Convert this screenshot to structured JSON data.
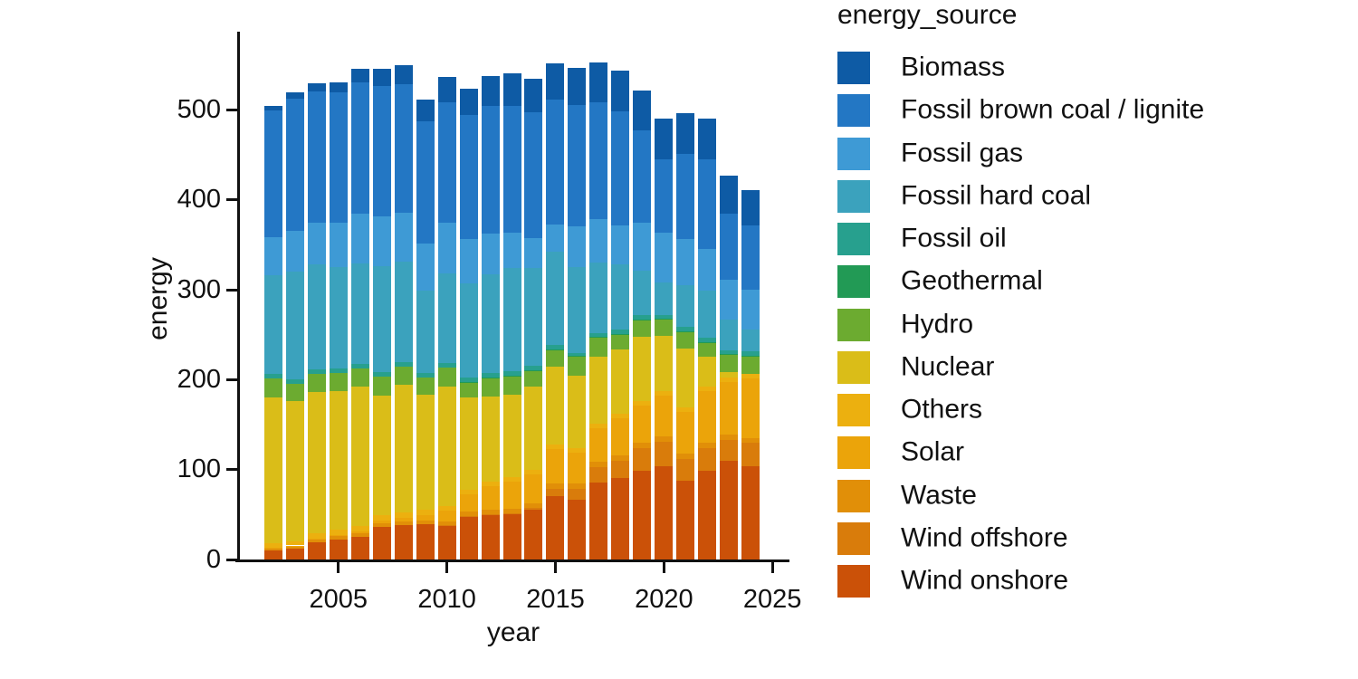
{
  "figure": {
    "background": "#ffffff",
    "axis_color": "#111111",
    "y_axis": {
      "label": "energy",
      "ticks": [
        0,
        100,
        200,
        300,
        400,
        500
      ]
    },
    "x_axis": {
      "label": "year",
      "ticks": [
        2005,
        2010,
        2015,
        2020,
        2025
      ]
    },
    "legend": {
      "title": "energy_source"
    }
  },
  "chart_data": {
    "type": "bar",
    "stacked": true,
    "title": "",
    "xlabel": "year",
    "ylabel": "energy",
    "legend_title": "energy_source",
    "legend_position": "right",
    "grid": false,
    "ylim": [
      0,
      560
    ],
    "x": [
      2002,
      2003,
      2004,
      2005,
      2006,
      2007,
      2008,
      2009,
      2010,
      2011,
      2012,
      2013,
      2014,
      2015,
      2016,
      2017,
      2018,
      2019,
      2020,
      2021,
      2022,
      2023,
      2024
    ],
    "stack_order_bottom_to_top": [
      "Wind onshore",
      "Wind offshore",
      "Waste",
      "Solar",
      "Others",
      "Nuclear",
      "Hydro",
      "Geothermal",
      "Fossil oil",
      "Fossil hard coal",
      "Fossil gas",
      "Fossil brown coal / lignite",
      "Biomass"
    ],
    "series": [
      {
        "name": "Biomass",
        "color": "#0e5ba5",
        "values": [
          5,
          7,
          9,
          11.5,
          16,
          19,
          21,
          24,
          29,
          29.1,
          33.9,
          35.6,
          36.6,
          40.2,
          41.5,
          44,
          44.8,
          44.4,
          45,
          45.2,
          44.6,
          42.3,
          39.5
        ]
      },
      {
        "name": "Fossil brown coal / lignite",
        "color": "#2377c4",
        "values": [
          141,
          147,
          146,
          145,
          145,
          145,
          143,
          136,
          134,
          138.1,
          142.2,
          140.9,
          140.3,
          139.3,
          135,
          130,
          127,
          102.2,
          82.1,
          95,
          100,
          74,
          71.1
        ]
      },
      {
        "name": "Fossil gas",
        "color": "#3e9ad5",
        "values": [
          42,
          45,
          46,
          49,
          56,
          55,
          54,
          52,
          56,
          48.9,
          45,
          39.3,
          33.2,
          29.7,
          45.2,
          48.6,
          43,
          54.1,
          55.6,
          51,
          46.8,
          44,
          45
        ]
      },
      {
        "name": "Fossil hard coal",
        "color": "#3ba2bd",
        "values": [
          110,
          120,
          116.5,
          113,
          112,
          118,
          112,
          92,
          100,
          104.4,
          110,
          115.1,
          108.9,
          103.9,
          95.5,
          78.8,
          72.7,
          48.7,
          35.6,
          46.4,
          52,
          34,
          24.2
        ]
      },
      {
        "name": "Fossil oil",
        "color": "#27a08e",
        "values": [
          5,
          5,
          5,
          5,
          5,
          5,
          5,
          5,
          5,
          4.9,
          4.9,
          4.9,
          4.8,
          4.8,
          3.4,
          3.3,
          5,
          5.1,
          4.7,
          4.7,
          4.8,
          4.4,
          4.2
        ]
      },
      {
        "name": "Geothermal",
        "color": "#229a55",
        "values": [
          0,
          0,
          0,
          0,
          0,
          0,
          0,
          0,
          0,
          0.2,
          0.2,
          0.1,
          0.1,
          0.1,
          0.2,
          0.2,
          0.2,
          0.2,
          0.2,
          0.2,
          0.2,
          0.2,
          0.2
        ]
      },
      {
        "name": "Hydro",
        "color": "#6cab30",
        "values": [
          21,
          19,
          20,
          19.5,
          20,
          21,
          20.4,
          19,
          20.9,
          17.5,
          20.9,
          21,
          18.5,
          18.7,
          21.8,
          21.8,
          16.6,
          19.2,
          18.7,
          19.4,
          16.5,
          19.6,
          20.7
        ]
      },
      {
        "name": "Nuclear",
        "color": "#dabd18",
        "values": [
          162,
          156,
          158,
          154.1,
          154.4,
          133.2,
          141,
          127.7,
          133,
          102.2,
          94.2,
          92.1,
          91.8,
          87.1,
          80.4,
          75,
          72.1,
          71.1,
          60.9,
          65.4,
          32.8,
          6.7,
          0
        ]
      },
      {
        "name": "Others",
        "color": "#ecb00f",
        "values": [
          5,
          5,
          6,
          6,
          6,
          6,
          6,
          6,
          5,
          5,
          5,
          5,
          5,
          5,
          5,
          5,
          5,
          5,
          5,
          5,
          5,
          5,
          5
        ]
      },
      {
        "name": "Solar",
        "color": "#eba40a",
        "values": [
          0.2,
          0.3,
          0.6,
          1.3,
          2.2,
          3.1,
          4.4,
          6.2,
          11.7,
          19.3,
          26.4,
          29.7,
          32.8,
          38.4,
          35,
          37,
          41.3,
          41.9,
          45.8,
          45.7,
          57.6,
          58,
          66
        ]
      },
      {
        "name": "Waste",
        "color": "#e18f08",
        "values": [
          3.5,
          3.3,
          3.3,
          4,
          4.3,
          4.5,
          4.6,
          4.6,
          4.6,
          4.8,
          4.9,
          5,
          5.2,
          5.5,
          5.9,
          6,
          6.2,
          6.1,
          5.9,
          6,
          5.8,
          5.7,
          5.5
        ]
      },
      {
        "name": "Wind offshore",
        "color": "#d97c0b",
        "values": [
          0,
          0,
          0,
          0,
          0,
          0,
          0,
          0,
          0.2,
          0.6,
          0.7,
          0.9,
          1.4,
          8.2,
          12.1,
          17.7,
          19.1,
          24.4,
          27.3,
          24.4,
          24.8,
          23.5,
          25.7
        ]
      },
      {
        "name": "Wind onshore",
        "color": "#cb5108",
        "values": [
          10,
          12.2,
          19,
          22.5,
          25.3,
          36,
          38,
          39,
          37.8,
          48.3,
          49.9,
          50.8,
          55.9,
          70.9,
          66.3,
          85.4,
          90.5,
          99.2,
          103.7,
          88,
          99.3,
          110,
          104
        ]
      }
    ]
  }
}
